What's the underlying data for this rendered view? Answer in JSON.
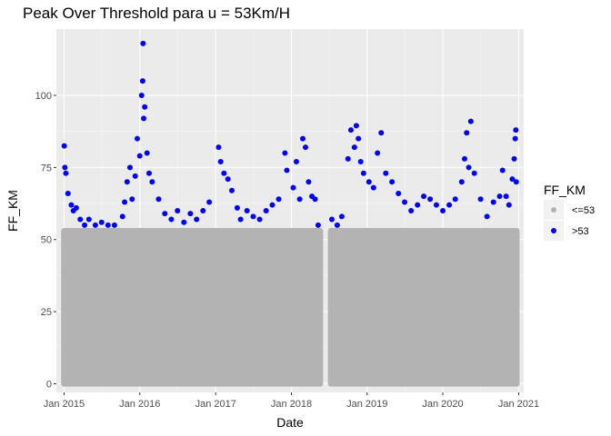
{
  "chart_data": {
    "type": "scatter",
    "title": "Peak Over Threshold para u = 53Km/H",
    "xlabel": "Date",
    "ylabel": "FF_KM",
    "threshold": 53,
    "xlim": [
      "2014-11-25",
      "2021-01-25"
    ],
    "ylim": [
      -3,
      123
    ],
    "x_ticks": [
      {
        "date": "2015-01-01",
        "label": "Jan 2015"
      },
      {
        "date": "2016-01-01",
        "label": "Jan 2016"
      },
      {
        "date": "2017-01-01",
        "label": "Jan 2017"
      },
      {
        "date": "2018-01-01",
        "label": "Jan 2018"
      },
      {
        "date": "2019-01-01",
        "label": "Jan 2019"
      },
      {
        "date": "2020-01-01",
        "label": "Jan 2020"
      },
      {
        "date": "2021-01-01",
        "label": "Jan 2021"
      }
    ],
    "y_ticks": [
      0,
      25,
      50,
      75,
      100
    ],
    "grid": true,
    "data_range": {
      "start": "2015-01-01",
      "end": "2020-12-22"
    },
    "data_gap": {
      "start": "2018-05-20",
      "end": "2018-07-10"
    },
    "below_threshold_band": {
      "ymin": 0,
      "ymax": 53,
      "color": "#b3b3b3"
    },
    "legend": {
      "title": "FF_KM",
      "position": "right",
      "entries": [
        {
          "label": "<=53",
          "color": "#b3b3b3"
        },
        {
          "label": ">53",
          "color": "#0000ff"
        }
      ]
    },
    "series": [
      {
        "name": "<=53",
        "color": "#b3b3b3",
        "points": [
          {
            "x": "2015-01-03",
            "y": 0
          },
          {
            "x": "2015-02-10",
            "y": 53
          },
          {
            "x": "2015-05-20",
            "y": 51
          },
          {
            "x": "2015-09-01",
            "y": 50
          },
          {
            "x": "2016-01-10",
            "y": 53
          },
          {
            "x": "2016-06-01",
            "y": 52
          },
          {
            "x": "2016-10-01",
            "y": 51
          },
          {
            "x": "2017-03-01",
            "y": 53
          },
          {
            "x": "2017-08-15",
            "y": 52
          },
          {
            "x": "2018-01-15",
            "y": 53
          },
          {
            "x": "2018-04-20",
            "y": 52
          },
          {
            "x": "2018-05-15",
            "y": 46
          },
          {
            "x": "2018-05-18",
            "y": 49
          },
          {
            "x": "2018-07-15",
            "y": 52
          },
          {
            "x": "2018-08-01",
            "y": 50
          },
          {
            "x": "2018-11-01",
            "y": 53
          },
          {
            "x": "2019-05-01",
            "y": 52
          },
          {
            "x": "2019-10-01",
            "y": 53
          },
          {
            "x": "2020-03-01",
            "y": 52
          },
          {
            "x": "2020-07-01",
            "y": 51
          },
          {
            "x": "2020-12-20",
            "y": 53
          },
          {
            "x": "2020-12-22",
            "y": 0
          }
        ]
      },
      {
        "name": ">53",
        "color": "#0000ff",
        "points": [
          {
            "x": "2015-01-02",
            "y": 82.5
          },
          {
            "x": "2015-01-05",
            "y": 75
          },
          {
            "x": "2015-01-10",
            "y": 73
          },
          {
            "x": "2015-01-20",
            "y": 66
          },
          {
            "x": "2015-02-05",
            "y": 62
          },
          {
            "x": "2015-02-15",
            "y": 60
          },
          {
            "x": "2015-03-01",
            "y": 61
          },
          {
            "x": "2015-03-20",
            "y": 57
          },
          {
            "x": "2015-04-10",
            "y": 55
          },
          {
            "x": "2015-05-01",
            "y": 57
          },
          {
            "x": "2015-06-01",
            "y": 55
          },
          {
            "x": "2015-07-01",
            "y": 56
          },
          {
            "x": "2015-08-01",
            "y": 55
          },
          {
            "x": "2015-09-01",
            "y": 55
          },
          {
            "x": "2015-10-10",
            "y": 58
          },
          {
            "x": "2015-10-20",
            "y": 63
          },
          {
            "x": "2015-11-01",
            "y": 70
          },
          {
            "x": "2015-11-15",
            "y": 75
          },
          {
            "x": "2015-11-25",
            "y": 64
          },
          {
            "x": "2015-12-10",
            "y": 72
          },
          {
            "x": "2015-12-20",
            "y": 85
          },
          {
            "x": "2016-01-01",
            "y": 79
          },
          {
            "x": "2016-01-10",
            "y": 100
          },
          {
            "x": "2016-01-15",
            "y": 105
          },
          {
            "x": "2016-01-17",
            "y": 118
          },
          {
            "x": "2016-01-20",
            "y": 92
          },
          {
            "x": "2016-01-25",
            "y": 96
          },
          {
            "x": "2016-02-05",
            "y": 80
          },
          {
            "x": "2016-02-15",
            "y": 73
          },
          {
            "x": "2016-03-01",
            "y": 70
          },
          {
            "x": "2016-04-01",
            "y": 64
          },
          {
            "x": "2016-05-01",
            "y": 59
          },
          {
            "x": "2016-06-01",
            "y": 57
          },
          {
            "x": "2016-07-01",
            "y": 60
          },
          {
            "x": "2016-08-01",
            "y": 56
          },
          {
            "x": "2016-09-01",
            "y": 59
          },
          {
            "x": "2016-10-01",
            "y": 57
          },
          {
            "x": "2016-11-01",
            "y": 60
          },
          {
            "x": "2016-12-01",
            "y": 63
          },
          {
            "x": "2017-01-15",
            "y": 82
          },
          {
            "x": "2017-01-25",
            "y": 77
          },
          {
            "x": "2017-02-10",
            "y": 73
          },
          {
            "x": "2017-03-01",
            "y": 71
          },
          {
            "x": "2017-03-20",
            "y": 67
          },
          {
            "x": "2017-04-15",
            "y": 61
          },
          {
            "x": "2017-05-01",
            "y": 57
          },
          {
            "x": "2017-06-01",
            "y": 60
          },
          {
            "x": "2017-07-01",
            "y": 58
          },
          {
            "x": "2017-08-01",
            "y": 57
          },
          {
            "x": "2017-09-01",
            "y": 60
          },
          {
            "x": "2017-10-01",
            "y": 62
          },
          {
            "x": "2017-11-01",
            "y": 64
          },
          {
            "x": "2017-12-01",
            "y": 80
          },
          {
            "x": "2017-12-10",
            "y": 74
          },
          {
            "x": "2018-01-10",
            "y": 68
          },
          {
            "x": "2018-01-25",
            "y": 77
          },
          {
            "x": "2018-02-10",
            "y": 64
          },
          {
            "x": "2018-02-25",
            "y": 85
          },
          {
            "x": "2018-03-10",
            "y": 82
          },
          {
            "x": "2018-03-25",
            "y": 70
          },
          {
            "x": "2018-04-10",
            "y": 65
          },
          {
            "x": "2018-04-25",
            "y": 64
          },
          {
            "x": "2018-05-10",
            "y": 55
          },
          {
            "x": "2018-07-15",
            "y": 57
          },
          {
            "x": "2018-08-10",
            "y": 55
          },
          {
            "x": "2018-09-01",
            "y": 58
          },
          {
            "x": "2018-10-01",
            "y": 78
          },
          {
            "x": "2018-10-15",
            "y": 88
          },
          {
            "x": "2018-11-01",
            "y": 82
          },
          {
            "x": "2018-11-10",
            "y": 89.5
          },
          {
            "x": "2018-11-20",
            "y": 85
          },
          {
            "x": "2018-12-01",
            "y": 77
          },
          {
            "x": "2018-12-15",
            "y": 73
          },
          {
            "x": "2019-01-10",
            "y": 70
          },
          {
            "x": "2019-02-01",
            "y": 68
          },
          {
            "x": "2019-02-20",
            "y": 80
          },
          {
            "x": "2019-03-10",
            "y": 87
          },
          {
            "x": "2019-04-01",
            "y": 73
          },
          {
            "x": "2019-05-01",
            "y": 70
          },
          {
            "x": "2019-06-01",
            "y": 66
          },
          {
            "x": "2019-07-01",
            "y": 63
          },
          {
            "x": "2019-08-01",
            "y": 60
          },
          {
            "x": "2019-09-01",
            "y": 62
          },
          {
            "x": "2019-10-01",
            "y": 65
          },
          {
            "x": "2019-11-01",
            "y": 64
          },
          {
            "x": "2019-12-01",
            "y": 62
          },
          {
            "x": "2020-01-01",
            "y": 60
          },
          {
            "x": "2020-02-01",
            "y": 62
          },
          {
            "x": "2020-03-01",
            "y": 64
          },
          {
            "x": "2020-04-01",
            "y": 70
          },
          {
            "x": "2020-04-15",
            "y": 78
          },
          {
            "x": "2020-04-25",
            "y": 87
          },
          {
            "x": "2020-05-05",
            "y": 75
          },
          {
            "x": "2020-05-15",
            "y": 91
          },
          {
            "x": "2020-06-01",
            "y": 73
          },
          {
            "x": "2020-07-01",
            "y": 64
          },
          {
            "x": "2020-08-01",
            "y": 58
          },
          {
            "x": "2020-09-01",
            "y": 63
          },
          {
            "x": "2020-10-01",
            "y": 65
          },
          {
            "x": "2020-10-15",
            "y": 74
          },
          {
            "x": "2020-11-01",
            "y": 65
          },
          {
            "x": "2020-11-15",
            "y": 62
          },
          {
            "x": "2020-12-01",
            "y": 71
          },
          {
            "x": "2020-12-10",
            "y": 78
          },
          {
            "x": "2020-12-15",
            "y": 85
          },
          {
            "x": "2020-12-18",
            "y": 88
          },
          {
            "x": "2020-12-20",
            "y": 70
          }
        ]
      }
    ]
  }
}
